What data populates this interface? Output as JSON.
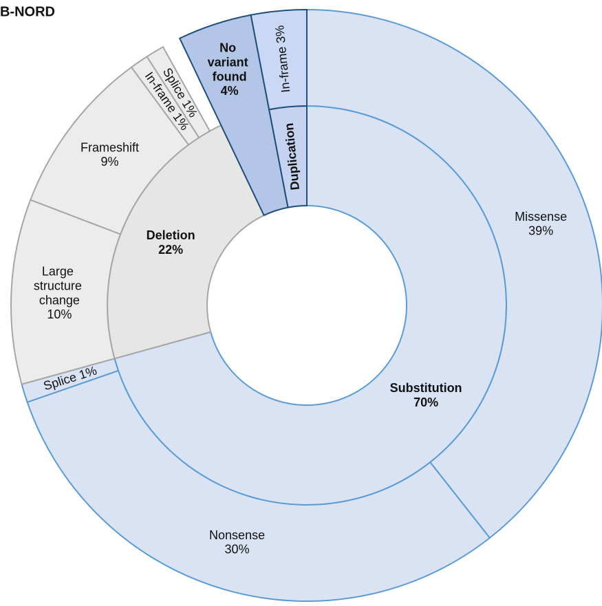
{
  "chart_data": {
    "type": "sunburst",
    "title": "B-NORD",
    "nodes": [
      {
        "name": "Substitution",
        "value": 70,
        "value_label": "70%",
        "color": "#dae3f3",
        "stroke": "#5b9bd5",
        "children": [
          {
            "name": "Missense",
            "value": 39,
            "value_label": "39%",
            "color": "#dae3f3"
          },
          {
            "name": "Nonsense",
            "value": 30,
            "value_label": "30%",
            "color": "#dae3f3"
          },
          {
            "name": "Splice",
            "value": 1,
            "value_label": "1%",
            "color": "#dae3f3"
          }
        ]
      },
      {
        "name": "Deletion",
        "value": 22,
        "value_label": "22%",
        "color": "#e6e6e6",
        "stroke": "#a6a6a6",
        "children": [
          {
            "name": "Large structure change",
            "value": 10,
            "value_label": "10%",
            "color": "#ececec"
          },
          {
            "name": "Frameshift",
            "value": 9,
            "value_label": "9%",
            "color": "#ececec"
          },
          {
            "name": "In-frame",
            "value": 1,
            "value_label": "1%",
            "color": "#ececec"
          },
          {
            "name": "Splice",
            "value": 1,
            "value_label": "1%",
            "color": "#ececec"
          }
        ]
      },
      {
        "name": "No variant found",
        "value": 4,
        "value_label": "4%",
        "color": "#b4c6e7",
        "stroke": "#1f4e79"
      },
      {
        "name": "Duplication",
        "value": 3,
        "color": "#c5d3f0",
        "stroke": "#1f4e79",
        "children": [
          {
            "name": "In-frame",
            "value": 3,
            "value_label": "3%",
            "color": "#cad8f5"
          }
        ]
      }
    ]
  }
}
